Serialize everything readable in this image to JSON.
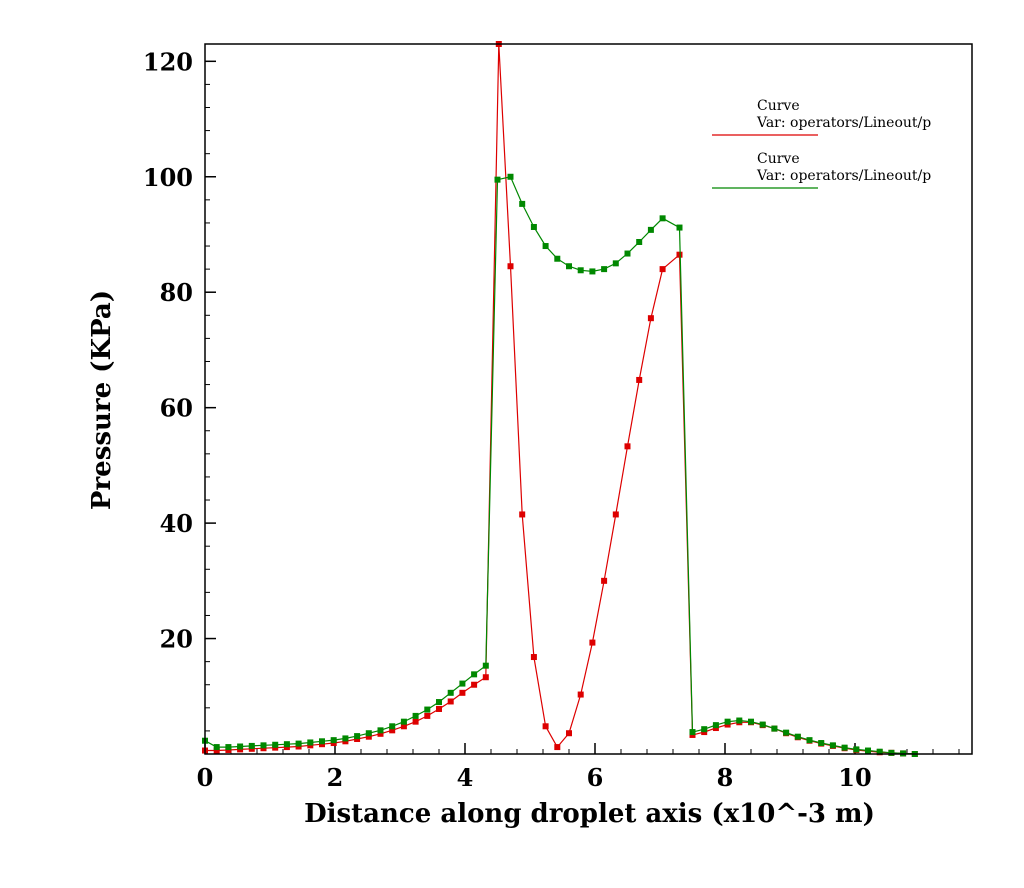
{
  "chart_data": {
    "type": "line",
    "xlabel": "Distance along droplet axis (x10^-3 m)",
    "ylabel": "Pressure (KPa)",
    "xlim": [
      0,
      11.8
    ],
    "ylim": [
      0,
      123
    ],
    "x_ticks": [
      {
        "value": 0,
        "label": "0"
      },
      {
        "value": 2,
        "label": "2"
      },
      {
        "value": 4,
        "label": "4"
      },
      {
        "value": 6,
        "label": "6"
      },
      {
        "value": 8,
        "label": "8"
      },
      {
        "value": 10,
        "label": "10"
      }
    ],
    "y_ticks": [
      {
        "value": 20,
        "label": "20"
      },
      {
        "value": 40,
        "label": "40"
      },
      {
        "value": 60,
        "label": "60"
      },
      {
        "value": 80,
        "label": "80"
      },
      {
        "value": 100,
        "label": "100"
      },
      {
        "value": 120,
        "label": "120"
      }
    ],
    "grid": false,
    "legend_position": "top-right",
    "series": [
      {
        "legend_title": "Curve",
        "legend_var": "Var: operators/Lineout/p",
        "color": "#dd0000",
        "points": [
          [
            0.0,
            0.6
          ],
          [
            0.18,
            0.6
          ],
          [
            0.36,
            0.7
          ],
          [
            0.54,
            0.8
          ],
          [
            0.72,
            0.9
          ],
          [
            0.9,
            1.0
          ],
          [
            1.08,
            1.1
          ],
          [
            1.26,
            1.2
          ],
          [
            1.44,
            1.3
          ],
          [
            1.62,
            1.5
          ],
          [
            1.8,
            1.7
          ],
          [
            1.98,
            1.9
          ],
          [
            2.16,
            2.2
          ],
          [
            2.34,
            2.6
          ],
          [
            2.52,
            3.0
          ],
          [
            2.7,
            3.5
          ],
          [
            2.88,
            4.1
          ],
          [
            3.06,
            4.8
          ],
          [
            3.24,
            5.6
          ],
          [
            3.42,
            6.6
          ],
          [
            3.6,
            7.8
          ],
          [
            3.78,
            9.1
          ],
          [
            3.96,
            10.6
          ],
          [
            4.14,
            12.0
          ],
          [
            4.32,
            13.3
          ],
          [
            4.52,
            123.0
          ],
          [
            4.7,
            84.5
          ],
          [
            4.88,
            41.5
          ],
          [
            5.06,
            16.8
          ],
          [
            5.24,
            4.8
          ],
          [
            5.42,
            1.2
          ],
          [
            5.6,
            3.6
          ],
          [
            5.78,
            10.3
          ],
          [
            5.96,
            19.3
          ],
          [
            6.14,
            30.0
          ],
          [
            6.32,
            41.5
          ],
          [
            6.5,
            53.3
          ],
          [
            6.68,
            64.8
          ],
          [
            6.86,
            75.5
          ],
          [
            7.04,
            84.0
          ],
          [
            7.3,
            86.5
          ],
          [
            7.5,
            3.3
          ],
          [
            7.68,
            3.8
          ],
          [
            7.86,
            4.5
          ],
          [
            8.04,
            5.1
          ],
          [
            8.22,
            5.5
          ],
          [
            8.4,
            5.5
          ],
          [
            8.58,
            5.0
          ],
          [
            8.76,
            4.4
          ],
          [
            8.94,
            3.6
          ],
          [
            9.12,
            2.9
          ],
          [
            9.3,
            2.3
          ],
          [
            9.48,
            1.8
          ],
          [
            9.66,
            1.4
          ],
          [
            9.84,
            1.0
          ],
          [
            10.02,
            0.7
          ],
          [
            10.2,
            0.5
          ],
          [
            10.38,
            0.3
          ],
          [
            10.56,
            0.2
          ],
          [
            10.74,
            0.1
          ],
          [
            10.92,
            0.0
          ]
        ]
      },
      {
        "legend_title": "Curve",
        "legend_var": "Var: operators/Lineout/p",
        "color": "#008800",
        "points": [
          [
            0.0,
            2.3
          ],
          [
            0.18,
            1.2
          ],
          [
            0.36,
            1.2
          ],
          [
            0.54,
            1.3
          ],
          [
            0.72,
            1.4
          ],
          [
            0.9,
            1.5
          ],
          [
            1.08,
            1.6
          ],
          [
            1.26,
            1.7
          ],
          [
            1.44,
            1.8
          ],
          [
            1.62,
            2.0
          ],
          [
            1.8,
            2.2
          ],
          [
            1.98,
            2.4
          ],
          [
            2.16,
            2.7
          ],
          [
            2.34,
            3.1
          ],
          [
            2.52,
            3.6
          ],
          [
            2.7,
            4.1
          ],
          [
            2.88,
            4.8
          ],
          [
            3.06,
            5.6
          ],
          [
            3.24,
            6.6
          ],
          [
            3.42,
            7.7
          ],
          [
            3.6,
            9.0
          ],
          [
            3.78,
            10.6
          ],
          [
            3.96,
            12.2
          ],
          [
            4.14,
            13.8
          ],
          [
            4.32,
            15.3
          ],
          [
            4.5,
            99.5
          ],
          [
            4.7,
            100.0
          ],
          [
            4.88,
            95.3
          ],
          [
            5.06,
            91.3
          ],
          [
            5.24,
            88.0
          ],
          [
            5.42,
            85.8
          ],
          [
            5.6,
            84.5
          ],
          [
            5.78,
            83.8
          ],
          [
            5.96,
            83.6
          ],
          [
            6.14,
            84.0
          ],
          [
            6.32,
            85.0
          ],
          [
            6.5,
            86.7
          ],
          [
            6.68,
            88.7
          ],
          [
            6.86,
            90.8
          ],
          [
            7.04,
            92.8
          ],
          [
            7.3,
            91.2
          ],
          [
            7.5,
            3.8
          ],
          [
            7.68,
            4.3
          ],
          [
            7.86,
            5.0
          ],
          [
            8.04,
            5.6
          ],
          [
            8.22,
            5.8
          ],
          [
            8.4,
            5.6
          ],
          [
            8.58,
            5.1
          ],
          [
            8.76,
            4.4
          ],
          [
            8.94,
            3.7
          ],
          [
            9.12,
            3.0
          ],
          [
            9.3,
            2.4
          ],
          [
            9.48,
            1.9
          ],
          [
            9.66,
            1.5
          ],
          [
            9.84,
            1.1
          ],
          [
            10.02,
            0.8
          ],
          [
            10.2,
            0.6
          ],
          [
            10.38,
            0.4
          ],
          [
            10.56,
            0.2
          ],
          [
            10.74,
            0.1
          ],
          [
            10.92,
            0.0
          ]
        ]
      }
    ]
  }
}
